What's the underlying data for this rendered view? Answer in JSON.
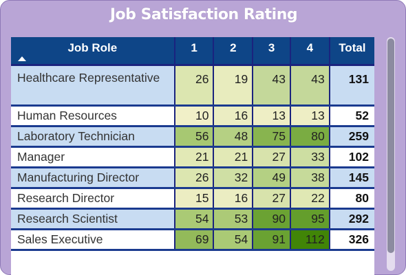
{
  "visual": {
    "title": "Job Satisfaction Rating"
  },
  "table": {
    "headers": [
      "Job Role",
      "1",
      "2",
      "3",
      "4",
      "Total"
    ],
    "sort": "ascending",
    "rows": [
      {
        "role": "Healthcare Representative",
        "r1": "26",
        "r2": "19",
        "r3": "43",
        "r4": "43",
        "total": "131",
        "bg": "#c8dcf2",
        "c1": "#dce6b0",
        "c2": "#e8ecbe",
        "c3": "#c4d89a",
        "c4": "#c4d89a"
      },
      {
        "role": "Human Resources",
        "r1": "10",
        "r2": "16",
        "r3": "13",
        "r4": "13",
        "total": "52",
        "bg": "#ffffff",
        "c1": "#f1f0c8",
        "c2": "#ebedc2",
        "c3": "#eeeec5",
        "c4": "#eeeec5"
      },
      {
        "role": "Laboratory Technician",
        "r1": "56",
        "r2": "48",
        "r3": "75",
        "r4": "80",
        "total": "259",
        "bg": "#c8dcf2",
        "c1": "#a7c872",
        "c2": "#b5d083",
        "c3": "#88b44f",
        "c4": "#7aac42"
      },
      {
        "role": "Manager",
        "r1": "21",
        "r2": "21",
        "r3": "27",
        "r4": "33",
        "total": "102",
        "bg": "#ffffff",
        "c1": "#e2e9b6",
        "c2": "#e2e9b6",
        "c3": "#d8e3ac",
        "c4": "#cddea2"
      },
      {
        "role": "Manufacturing Director",
        "r1": "26",
        "r2": "32",
        "r3": "49",
        "r4": "38",
        "total": "145",
        "bg": "#c8dcf2",
        "c1": "#dce6b0",
        "c2": "#cfdfa4",
        "c3": "#b4d083",
        "c4": "#c6da9a"
      },
      {
        "role": "Research Director",
        "r1": "15",
        "r2": "16",
        "r3": "27",
        "r4": "22",
        "total": "80",
        "bg": "#ffffff",
        "c1": "#ecedc2",
        "c2": "#ebedc2",
        "c3": "#d8e3ac",
        "c4": "#e0e8b4"
      },
      {
        "role": "Research Scientist",
        "r1": "54",
        "r2": "53",
        "r3": "90",
        "r4": "95",
        "total": "292",
        "bg": "#c8dcf2",
        "c1": "#aaca75",
        "c2": "#acca77",
        "c3": "#6ba233",
        "c4": "#649e2c"
      },
      {
        "role": "Sales Executive",
        "r1": "69",
        "r2": "54",
        "r3": "91",
        "r4": "112",
        "total": "326",
        "bg": "#ffffff",
        "c1": "#93ba5a",
        "c2": "#aaca75",
        "c3": "#6aa232",
        "c4": "#418507"
      }
    ]
  }
}
